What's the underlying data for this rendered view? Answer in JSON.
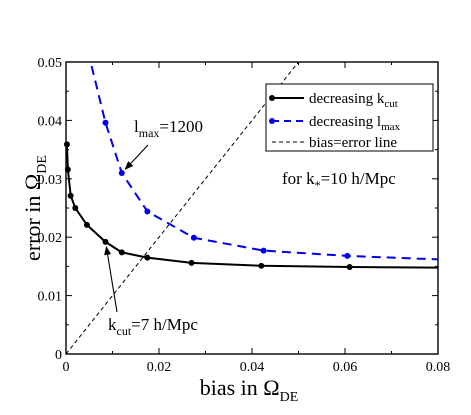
{
  "chart_data": {
    "type": "line",
    "xlabel": {
      "main": "bias in Ω",
      "sub": "DE"
    },
    "ylabel": {
      "main": "error in Ω",
      "sub": "DE"
    },
    "xlim": [
      0,
      0.08
    ],
    "ylim": [
      0,
      0.05
    ],
    "x_ticks": [
      0,
      0.02,
      0.04,
      0.06,
      0.08
    ],
    "x_tick_labels": [
      "0",
      "0.02",
      "0.04",
      "0.06",
      "0.08"
    ],
    "y_ticks": [
      0,
      0.01,
      0.02,
      0.03,
      0.04,
      0.05
    ],
    "y_tick_labels": [
      "0",
      "0.01",
      "0.02",
      "0.03",
      "0.04",
      "0.05"
    ],
    "grid": false,
    "legend_position": "top-right",
    "legend": [
      {
        "text_main": "decreasing k",
        "text_sub": "cut"
      },
      {
        "text_main": "decreasing l",
        "text_sub": "max"
      },
      {
        "text_main": "bias=error line",
        "text_sub": ""
      }
    ],
    "series": [
      {
        "style": "solid",
        "color": "#000000",
        "x": [
          0.0002,
          0.0004,
          0.001,
          0.002,
          0.0045,
          0.0085,
          0.012,
          0.0175,
          0.027,
          0.042,
          0.061,
          0.08
        ],
        "y": [
          0.0359,
          0.0316,
          0.0271,
          0.025,
          0.0221,
          0.0192,
          0.0174,
          0.0165,
          0.0156,
          0.0151,
          0.0149,
          0.0148
        ],
        "markers": [
          0,
          1,
          2,
          3,
          4,
          5,
          6,
          7,
          8,
          9,
          10
        ]
      },
      {
        "style": "dashed",
        "color": "#0000ee",
        "x": [
          0.0055,
          0.0085,
          0.012,
          0.0175,
          0.0275,
          0.0425,
          0.0605,
          0.08
        ],
        "y": [
          0.0493,
          0.0396,
          0.031,
          0.0244,
          0.0199,
          0.0177,
          0.0168,
          0.0162
        ],
        "markers": [
          1,
          2,
          3,
          4,
          5,
          6
        ]
      },
      {
        "style": "short-dashed",
        "color": "#000000",
        "x": [
          0,
          0.05
        ],
        "y": [
          0,
          0.05
        ],
        "markers": []
      }
    ],
    "annotations": [
      {
        "text_main": "l",
        "text_sub": "max",
        "text_rest": "=1200",
        "arrow_to": [
          0.012,
          0.031
        ]
      },
      {
        "text_main": "k",
        "text_sub": "cut",
        "text_rest": "=7 h/Mpc",
        "arrow_to": [
          0.0085,
          0.0192
        ]
      },
      {
        "text_main": "for k",
        "text_sub": "*",
        "text_rest": "=10 h/Mpc"
      }
    ]
  }
}
